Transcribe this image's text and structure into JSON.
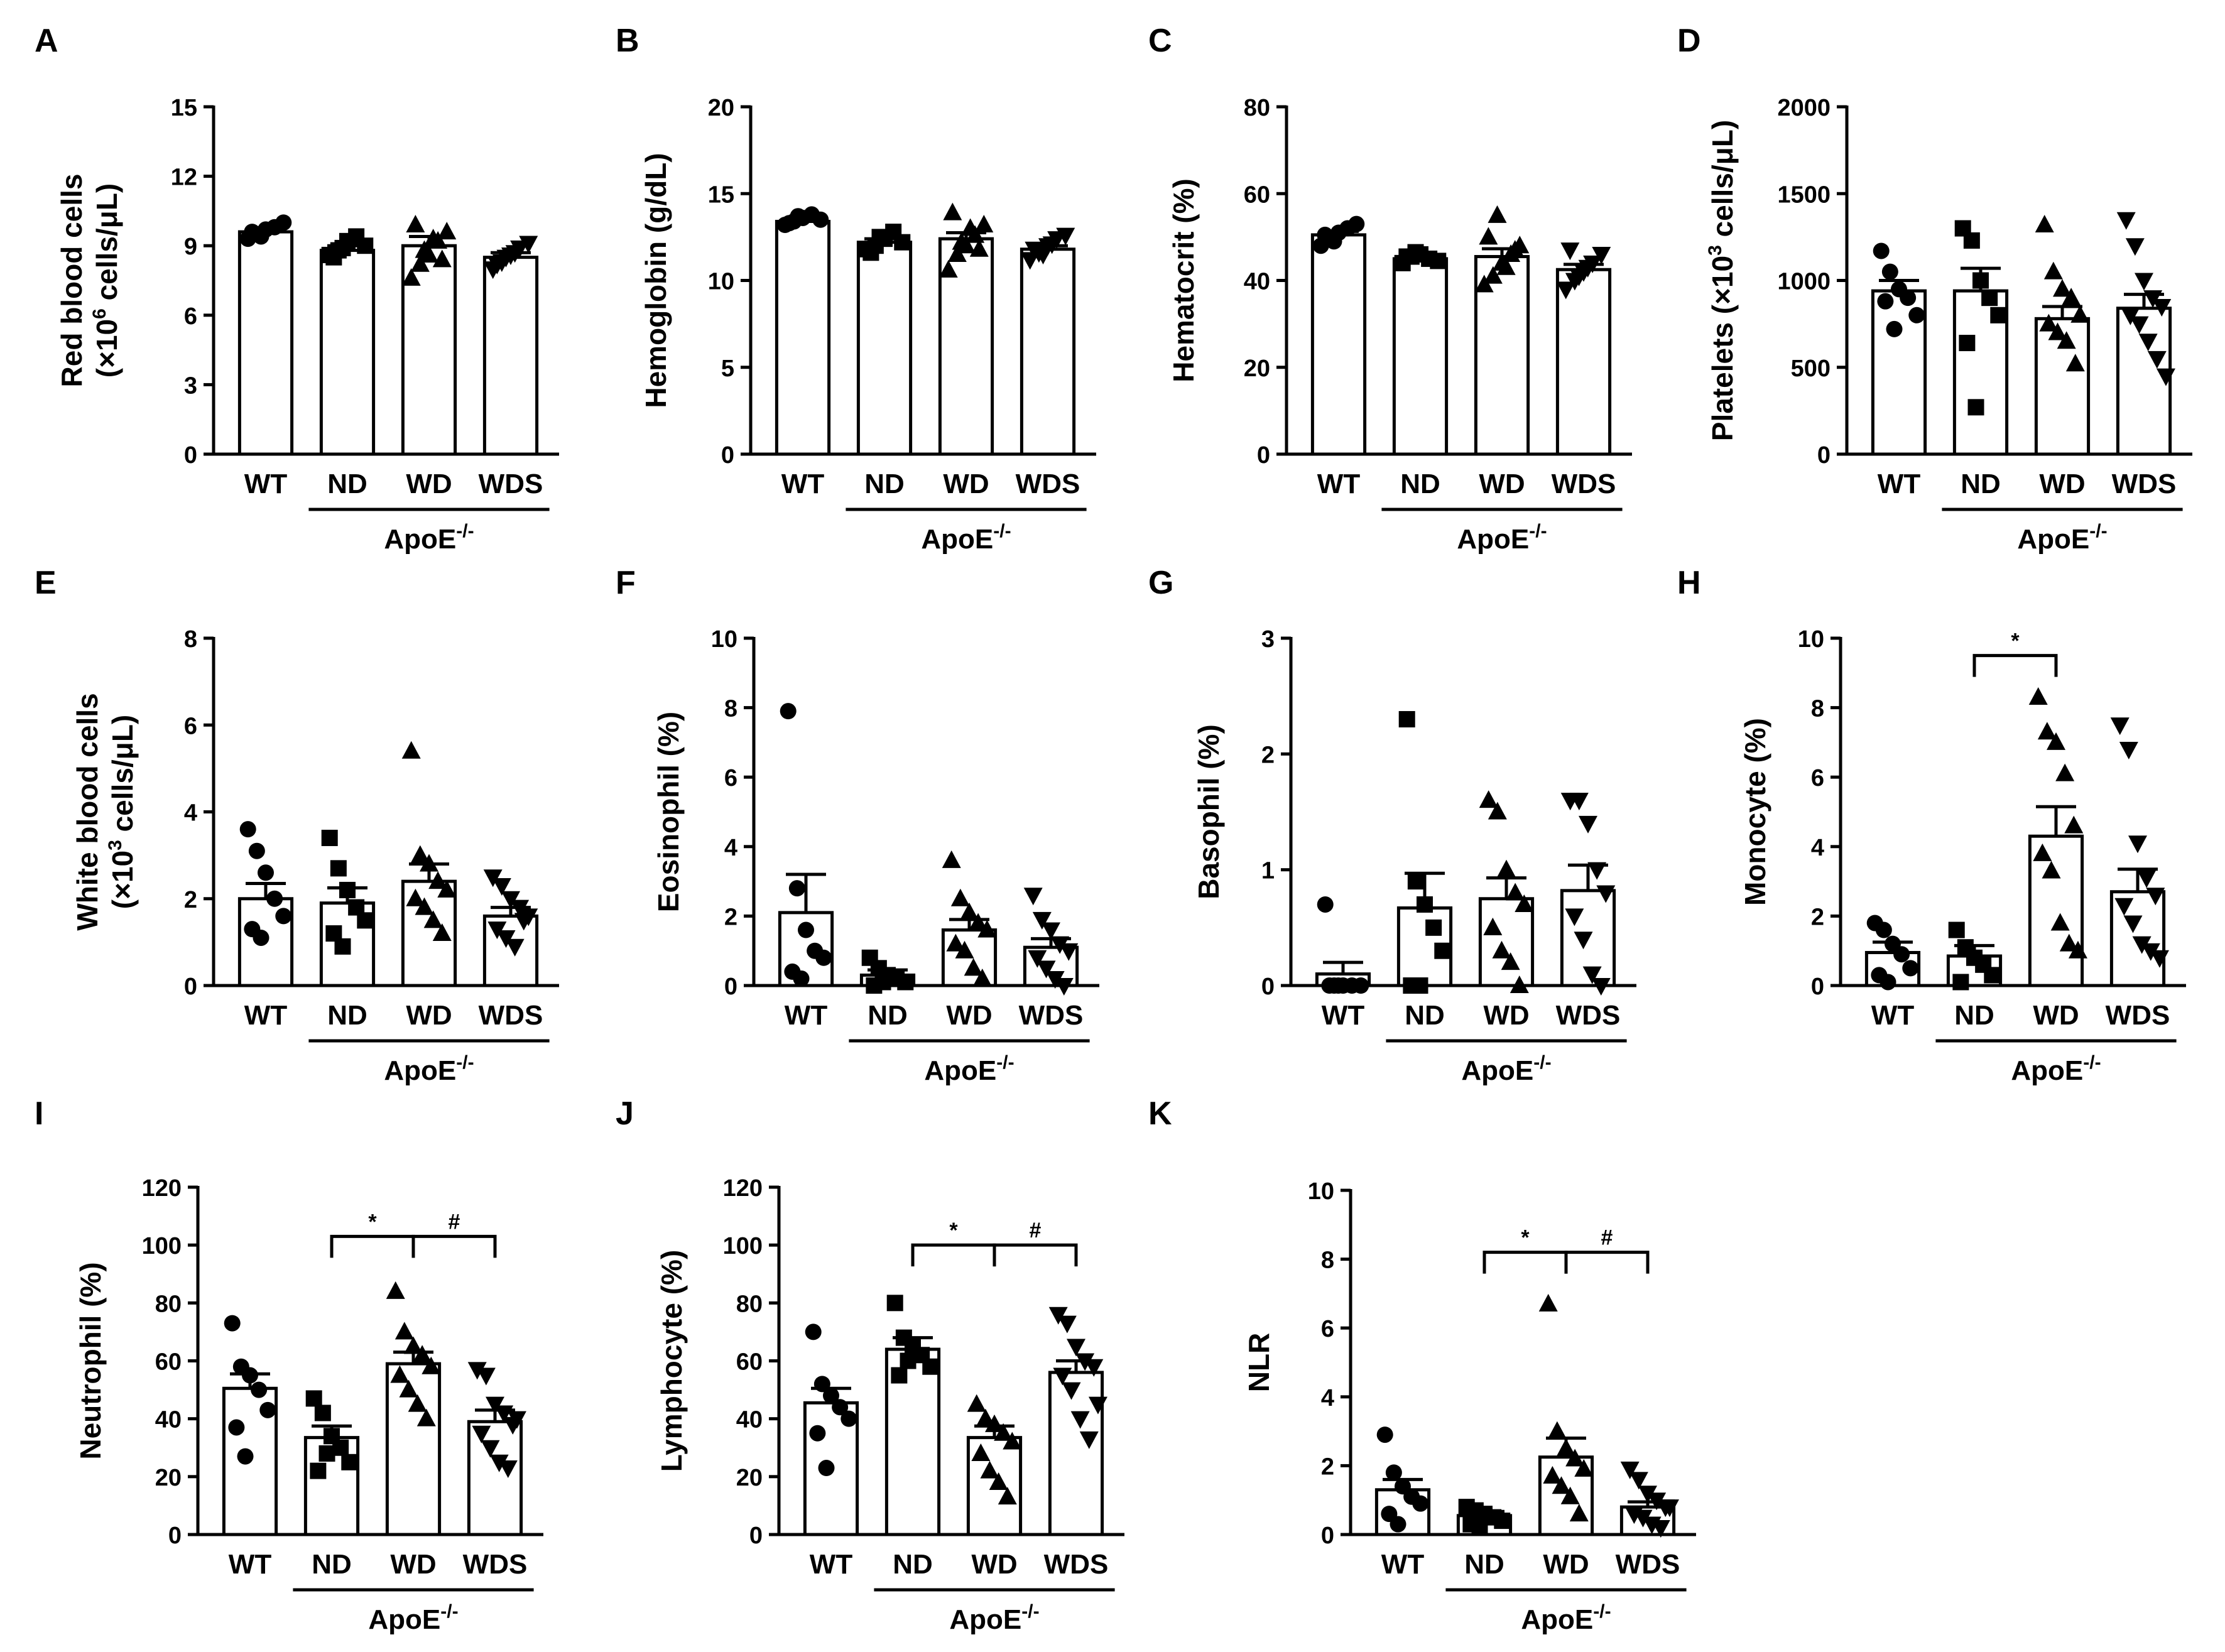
{
  "figure": {
    "group_label": "ApoE",
    "group_label_sup": "-/-",
    "categories": [
      "WT",
      "ND",
      "WD",
      "WDS"
    ]
  },
  "chart_data": [
    {
      "panel": "A",
      "type": "bar",
      "ylabel": [
        [
          {
            "t": "Red blood cells"
          }
        ],
        [
          {
            "t": "(×10"
          },
          {
            "t": "6",
            "sup": true
          },
          {
            "t": " cells/μL)"
          }
        ]
      ],
      "ylim": [
        0,
        15
      ],
      "yticks": [
        0,
        3,
        6,
        9,
        12,
        15
      ],
      "categories": [
        "WT",
        "ND",
        "WD",
        "WDS"
      ],
      "values": [
        9.6,
        8.8,
        9.0,
        8.5
      ],
      "sem": [
        0.15,
        0.2,
        0.4,
        0.2
      ],
      "markers": [
        "circle",
        "square",
        "triangle",
        "triangle-down"
      ],
      "points": [
        [
          9.3,
          9.5,
          9.7,
          9.8,
          10.0,
          9.6,
          9.4
        ],
        [
          8.6,
          8.8,
          9.2,
          9.4,
          9.0,
          8.5,
          8.9
        ],
        [
          7.6,
          8.2,
          8.6,
          9.2,
          9.6,
          9.9,
          8.8,
          9.3,
          8.4
        ],
        [
          8.0,
          8.3,
          8.6,
          8.9,
          9.1,
          8.2,
          8.5,
          8.7
        ]
      ],
      "brackets": []
    },
    {
      "panel": "B",
      "type": "bar",
      "ylabel": [
        [
          {
            "t": "Hemoglobin (g/dL)"
          }
        ]
      ],
      "ylim": [
        0,
        20
      ],
      "yticks": [
        0,
        5,
        10,
        15,
        20
      ],
      "categories": [
        "WT",
        "ND",
        "WD",
        "WDS"
      ],
      "values": [
        13.4,
        12.2,
        12.4,
        11.8
      ],
      "sem": [
        0.15,
        0.2,
        0.35,
        0.2
      ],
      "markers": [
        "circle",
        "square",
        "triangle",
        "triangle-down"
      ],
      "points": [
        [
          13.2,
          13.4,
          13.6,
          13.8,
          13.5,
          13.3,
          13.7
        ],
        [
          11.8,
          12.0,
          12.4,
          12.8,
          12.2,
          11.6,
          12.5
        ],
        [
          10.6,
          11.5,
          12.0,
          12.6,
          13.2,
          13.9,
          12.2,
          13.0,
          11.8
        ],
        [
          11.2,
          11.6,
          12.0,
          12.4,
          12.6,
          11.8,
          11.5,
          12.1
        ]
      ],
      "brackets": []
    },
    {
      "panel": "C",
      "type": "bar",
      "ylabel": [
        [
          {
            "t": "Hematocrit (%)"
          }
        ]
      ],
      "ylim": [
        0,
        80
      ],
      "yticks": [
        0,
        20,
        40,
        60,
        80
      ],
      "categories": [
        "WT",
        "ND",
        "WD",
        "WDS"
      ],
      "values": [
        50.5,
        45.0,
        45.5,
        42.5
      ],
      "sem": [
        0.8,
        0.7,
        1.8,
        1.2
      ],
      "markers": [
        "circle",
        "square",
        "triangle",
        "triangle-down"
      ],
      "points": [
        [
          48.0,
          49.5,
          51.0,
          52.0,
          53.0,
          50.5,
          49.0
        ],
        [
          44.0,
          45.5,
          46.0,
          45.0,
          44.5,
          45.5,
          46.5
        ],
        [
          39.0,
          41.0,
          44.0,
          46.0,
          48.0,
          50.0,
          55.0,
          43.0,
          47.0
        ],
        [
          38.0,
          40.0,
          42.0,
          44.0,
          46.0,
          47.0,
          41.0,
          43.0
        ]
      ],
      "brackets": []
    },
    {
      "panel": "D",
      "type": "bar",
      "ylabel": [
        [
          {
            "t": "Platelets (×10"
          },
          {
            "t": "3",
            "sup": true
          },
          {
            "t": " cells/μL)"
          }
        ]
      ],
      "ylim": [
        0,
        2000
      ],
      "yticks": [
        0,
        500,
        1000,
        1500,
        2000
      ],
      "categories": [
        "WT",
        "ND",
        "WD",
        "WDS"
      ],
      "values": [
        940,
        940,
        780,
        840
      ],
      "sem": [
        60,
        130,
        70,
        80
      ],
      "markers": [
        "circle",
        "square",
        "triangle",
        "triangle-down"
      ],
      "points": [
        [
          1170,
          1050,
          950,
          900,
          800,
          880,
          720
        ],
        [
          1300,
          1230,
          1000,
          900,
          800,
          640,
          270
        ],
        [
          1320,
          1050,
          950,
          900,
          800,
          750,
          700,
          650,
          520
        ],
        [
          1350,
          1200,
          1000,
          900,
          850,
          800,
          750,
          650,
          550,
          450
        ]
      ],
      "brackets": []
    },
    {
      "panel": "E",
      "type": "bar",
      "ylabel": [
        [
          {
            "t": "White blood cells"
          }
        ],
        [
          {
            "t": "(×10"
          },
          {
            "t": "3",
            "sup": true
          },
          {
            "t": " cells/μL)"
          }
        ]
      ],
      "ylim": [
        0,
        8
      ],
      "yticks": [
        0,
        2,
        4,
        6,
        8
      ],
      "categories": [
        "WT",
        "ND",
        "WD",
        "WDS"
      ],
      "values": [
        2.0,
        1.9,
        2.4,
        1.6
      ],
      "sem": [
        0.35,
        0.35,
        0.4,
        0.2
      ],
      "markers": [
        "circle",
        "square",
        "triangle",
        "triangle-down"
      ],
      "points": [
        [
          3.6,
          3.1,
          2.6,
          2.0,
          1.6,
          1.3,
          1.1
        ],
        [
          3.4,
          2.7,
          2.2,
          1.8,
          1.5,
          1.2,
          0.9
        ],
        [
          5.4,
          3.0,
          2.8,
          2.4,
          2.2,
          2.0,
          1.8,
          1.5,
          1.2
        ],
        [
          2.5,
          2.3,
          2.0,
          1.8,
          1.6,
          1.3,
          1.1,
          0.9,
          1.5
        ]
      ],
      "brackets": []
    },
    {
      "panel": "F",
      "type": "bar",
      "ylabel": [
        [
          {
            "t": "Eosinophil (%)"
          }
        ]
      ],
      "ylim": [
        0,
        10
      ],
      "yticks": [
        0,
        2,
        4,
        6,
        8,
        10
      ],
      "categories": [
        "WT",
        "ND",
        "WD",
        "WDS"
      ],
      "values": [
        2.1,
        0.3,
        1.6,
        1.1
      ],
      "sem": [
        1.1,
        0.15,
        0.3,
        0.25
      ],
      "markers": [
        "circle",
        "square",
        "triangle",
        "triangle-down"
      ],
      "points": [
        [
          7.9,
          2.8,
          1.6,
          1.0,
          0.8,
          0.4,
          0.2
        ],
        [
          0.8,
          0.5,
          0.3,
          0.2,
          0.1,
          0.0,
          0.1
        ],
        [
          3.6,
          2.5,
          2.1,
          1.8,
          1.6,
          1.2,
          1.0,
          0.5,
          0.2
        ],
        [
          2.6,
          1.9,
          1.6,
          1.2,
          1.0,
          0.8,
          0.5,
          0.2,
          0.0
        ]
      ],
      "brackets": []
    },
    {
      "panel": "G",
      "type": "bar",
      "ylabel": [
        [
          {
            "t": "Basophil (%)"
          }
        ]
      ],
      "ylim": [
        0,
        3
      ],
      "yticks": [
        0,
        1,
        2,
        3
      ],
      "categories": [
        "WT",
        "ND",
        "WD",
        "WDS"
      ],
      "values": [
        0.1,
        0.67,
        0.75,
        0.82
      ],
      "sem": [
        0.1,
        0.3,
        0.18,
        0.22
      ],
      "markers": [
        "circle",
        "square",
        "triangle",
        "triangle-down"
      ],
      "points": [
        [
          0.7,
          0.0,
          0.0,
          0.0,
          0.0,
          0.0,
          0.0
        ],
        [
          2.3,
          0.9,
          0.7,
          0.5,
          0.3,
          0.0,
          0.0
        ],
        [
          1.6,
          1.5,
          1.0,
          0.8,
          0.7,
          0.5,
          0.3,
          0.2,
          0.0
        ],
        [
          1.6,
          1.6,
          1.4,
          1.0,
          0.8,
          0.6,
          0.4,
          0.1,
          0.0
        ]
      ],
      "brackets": []
    },
    {
      "panel": "H",
      "type": "bar",
      "ylabel": [
        [
          {
            "t": "Monocyte (%)"
          }
        ]
      ],
      "ylim": [
        0,
        10
      ],
      "yticks": [
        0,
        2,
        4,
        6,
        8,
        10
      ],
      "categories": [
        "WT",
        "ND",
        "WD",
        "WDS"
      ],
      "values": [
        0.95,
        0.85,
        4.3,
        2.7
      ],
      "sem": [
        0.3,
        0.3,
        0.85,
        0.65
      ],
      "markers": [
        "circle",
        "square",
        "triangle",
        "triangle-down"
      ],
      "points": [
        [
          1.8,
          1.6,
          1.2,
          0.9,
          0.5,
          0.3,
          0.1
        ],
        [
          1.6,
          1.1,
          0.8,
          0.6,
          0.3,
          0.1
        ],
        [
          8.3,
          7.3,
          7.0,
          6.1,
          4.6,
          3.8,
          3.3,
          1.8,
          1.2,
          1.0
        ],
        [
          7.5,
          6.8,
          4.1,
          3.1,
          2.6,
          2.3,
          1.8,
          1.2,
          1.0,
          0.8
        ]
      ],
      "brackets": [
        {
          "from": 1,
          "to": 2,
          "level": 9.5,
          "label": "*"
        }
      ]
    },
    {
      "panel": "I",
      "type": "bar",
      "ylabel": [
        [
          {
            "t": "Neutrophil (%)"
          }
        ]
      ],
      "ylim": [
        0,
        120
      ],
      "yticks": [
        0,
        20,
        40,
        60,
        80,
        100,
        120
      ],
      "categories": [
        "WT",
        "ND",
        "WD",
        "WDS"
      ],
      "values": [
        50.5,
        33.5,
        59.0,
        39.0
      ],
      "sem": [
        5.0,
        4.0,
        4.0,
        4.0
      ],
      "markers": [
        "circle",
        "square",
        "triangle",
        "triangle-down"
      ],
      "points": [
        [
          73,
          58,
          55,
          50,
          43,
          37,
          27
        ],
        [
          47,
          42,
          34,
          30,
          25,
          22,
          28
        ],
        [
          84,
          70,
          65,
          62,
          58,
          55,
          50,
          45,
          40
        ],
        [
          57,
          55,
          45,
          42,
          38,
          35,
          30,
          25,
          23,
          40
        ]
      ],
      "brackets": [
        {
          "from": 1,
          "to": 2,
          "level": 103,
          "label": "*"
        },
        {
          "from": 2,
          "to": 3,
          "level": 103,
          "label": "#"
        }
      ]
    },
    {
      "panel": "J",
      "type": "bar",
      "ylabel": [
        [
          {
            "t": "Lymphocyte (%)"
          }
        ]
      ],
      "ylim": [
        0,
        120
      ],
      "yticks": [
        0,
        20,
        40,
        60,
        80,
        100,
        120
      ],
      "categories": [
        "WT",
        "ND",
        "WD",
        "WDS"
      ],
      "values": [
        45.5,
        64.0,
        33.5,
        56.0
      ],
      "sem": [
        5.0,
        4.0,
        4.0,
        4.0
      ],
      "markers": [
        "circle",
        "square",
        "triangle",
        "triangle-down"
      ],
      "points": [
        [
          70,
          52,
          48,
          44,
          40,
          35,
          23
        ],
        [
          80,
          68,
          65,
          62,
          58,
          55,
          60
        ],
        [
          45,
          40,
          38,
          35,
          32,
          28,
          22,
          18,
          13
        ],
        [
          76,
          73,
          65,
          60,
          58,
          55,
          50,
          40,
          33,
          45
        ]
      ],
      "brackets": [
        {
          "from": 1,
          "to": 2,
          "level": 100,
          "label": "*"
        },
        {
          "from": 2,
          "to": 3,
          "level": 100,
          "label": "#"
        }
      ]
    },
    {
      "panel": "K",
      "type": "bar",
      "ylabel": [
        [
          {
            "t": "NLR"
          }
        ]
      ],
      "ylim": [
        0,
        10
      ],
      "yticks": [
        0,
        2,
        4,
        6,
        8,
        10
      ],
      "categories": [
        "WT",
        "ND",
        "WD",
        "WDS"
      ],
      "values": [
        1.3,
        0.55,
        2.25,
        0.8
      ],
      "sem": [
        0.3,
        0.12,
        0.55,
        0.15
      ],
      "markers": [
        "circle",
        "square",
        "triangle",
        "triangle-down"
      ],
      "points": [
        [
          2.9,
          1.8,
          1.4,
          1.1,
          0.9,
          0.6,
          0.3
        ],
        [
          0.8,
          0.7,
          0.6,
          0.5,
          0.4,
          0.3,
          0.2
        ],
        [
          6.7,
          3.0,
          2.5,
          2.2,
          1.9,
          1.7,
          1.4,
          1.1,
          0.6
        ],
        [
          1.9,
          1.6,
          1.2,
          1.0,
          0.8,
          0.6,
          0.5,
          0.3,
          0.2,
          0.8
        ]
      ],
      "brackets": [
        {
          "from": 1,
          "to": 2,
          "level": 8.2,
          "label": "*"
        },
        {
          "from": 2,
          "to": 3,
          "level": 8.2,
          "label": "#"
        }
      ]
    }
  ]
}
